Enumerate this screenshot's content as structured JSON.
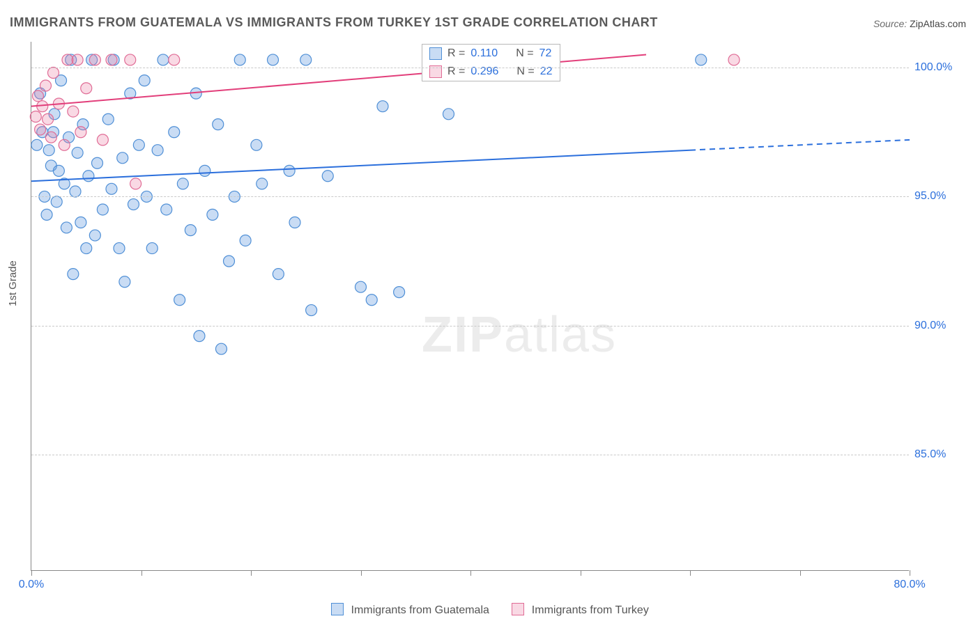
{
  "title": "IMMIGRANTS FROM GUATEMALA VS IMMIGRANTS FROM TURKEY 1ST GRADE CORRELATION CHART",
  "source_label": "Source:",
  "source_value": "ZipAtlas.com",
  "ylabel": "1st Grade",
  "watermark_a": "ZIP",
  "watermark_b": "atlas",
  "chart": {
    "type": "scatter",
    "x_domain": [
      0,
      80
    ],
    "y_domain": [
      80.5,
      101
    ],
    "y_gridlines": [
      85,
      90,
      95,
      100
    ],
    "y_tick_labels": [
      "85.0%",
      "90.0%",
      "95.0%",
      "100.0%"
    ],
    "x_ticks_pct": [
      0,
      10,
      20,
      30,
      40,
      50,
      60,
      70,
      80
    ],
    "x_min_label": "0.0%",
    "x_max_label": "80.0%",
    "grid_color": "#c9c9c9",
    "axis_color": "#888888",
    "background": "#ffffff",
    "tick_label_color": "#2b6fdc",
    "series": [
      {
        "id": "guatemala",
        "label": "Immigrants from Guatemala",
        "marker_fill": "rgba(99,155,224,0.35)",
        "marker_stroke": "#4f8fd6",
        "marker_radius": 8,
        "line_color": "#2b6fdc",
        "line_width": 2,
        "trend": {
          "x1": 0,
          "y1": 95.6,
          "x2": 60,
          "y2": 96.8,
          "dash_x2": 80,
          "dash_y2": 97.2
        },
        "R": "0.110",
        "N": "72",
        "points": [
          [
            0.5,
            97.0
          ],
          [
            0.8,
            99.0
          ],
          [
            1.0,
            97.5
          ],
          [
            1.2,
            95.0
          ],
          [
            1.4,
            94.3
          ],
          [
            1.6,
            96.8
          ],
          [
            1.8,
            96.2
          ],
          [
            2.0,
            97.5
          ],
          [
            2.1,
            98.2
          ],
          [
            2.3,
            94.8
          ],
          [
            2.5,
            96.0
          ],
          [
            2.7,
            99.5
          ],
          [
            3.0,
            95.5
          ],
          [
            3.2,
            93.8
          ],
          [
            3.4,
            97.3
          ],
          [
            3.6,
            100.3
          ],
          [
            3.8,
            92.0
          ],
          [
            4.0,
            95.2
          ],
          [
            4.2,
            96.7
          ],
          [
            4.5,
            94.0
          ],
          [
            4.7,
            97.8
          ],
          [
            5.0,
            93.0
          ],
          [
            5.2,
            95.8
          ],
          [
            5.5,
            100.3
          ],
          [
            5.8,
            93.5
          ],
          [
            6.0,
            96.3
          ],
          [
            6.5,
            94.5
          ],
          [
            7.0,
            98.0
          ],
          [
            7.3,
            95.3
          ],
          [
            7.5,
            100.3
          ],
          [
            8.0,
            93.0
          ],
          [
            8.3,
            96.5
          ],
          [
            8.5,
            91.7
          ],
          [
            9.0,
            99.0
          ],
          [
            9.3,
            94.7
          ],
          [
            9.8,
            97.0
          ],
          [
            10.3,
            99.5
          ],
          [
            10.5,
            95.0
          ],
          [
            11.0,
            93.0
          ],
          [
            11.5,
            96.8
          ],
          [
            12.0,
            100.3
          ],
          [
            12.3,
            94.5
          ],
          [
            13.0,
            97.5
          ],
          [
            13.5,
            91.0
          ],
          [
            13.8,
            95.5
          ],
          [
            14.5,
            93.7
          ],
          [
            15.0,
            99.0
          ],
          [
            15.3,
            89.6
          ],
          [
            15.8,
            96.0
          ],
          [
            16.5,
            94.3
          ],
          [
            17.0,
            97.8
          ],
          [
            17.3,
            89.1
          ],
          [
            18.0,
            92.5
          ],
          [
            18.5,
            95.0
          ],
          [
            19.0,
            100.3
          ],
          [
            19.5,
            93.3
          ],
          [
            20.5,
            97.0
          ],
          [
            21.0,
            95.5
          ],
          [
            22.0,
            100.3
          ],
          [
            22.5,
            92.0
          ],
          [
            23.5,
            96.0
          ],
          [
            24.0,
            94.0
          ],
          [
            25.0,
            100.3
          ],
          [
            25.5,
            90.6
          ],
          [
            27.0,
            95.8
          ],
          [
            30.0,
            91.5
          ],
          [
            31.0,
            91.0
          ],
          [
            32.0,
            98.5
          ],
          [
            33.5,
            91.3
          ],
          [
            38.0,
            98.2
          ],
          [
            40.0,
            100.3
          ],
          [
            61.0,
            100.3
          ]
        ]
      },
      {
        "id": "turkey",
        "label": "Immigrants from Turkey",
        "marker_fill": "rgba(235,130,165,0.30)",
        "marker_stroke": "#e06b95",
        "marker_radius": 8,
        "line_color": "#e23e7a",
        "line_width": 2,
        "trend": {
          "x1": 0,
          "y1": 98.5,
          "x2": 56,
          "y2": 100.5,
          "dash_x2": null,
          "dash_y2": null
        },
        "R": "0.296",
        "N": "22",
        "points": [
          [
            0.4,
            98.1
          ],
          [
            0.6,
            98.9
          ],
          [
            0.8,
            97.6
          ],
          [
            1.0,
            98.5
          ],
          [
            1.3,
            99.3
          ],
          [
            1.5,
            98.0
          ],
          [
            1.8,
            97.3
          ],
          [
            2.0,
            99.8
          ],
          [
            2.5,
            98.6
          ],
          [
            3.0,
            97.0
          ],
          [
            3.3,
            100.3
          ],
          [
            3.8,
            98.3
          ],
          [
            4.2,
            100.3
          ],
          [
            4.5,
            97.5
          ],
          [
            5.0,
            99.2
          ],
          [
            5.8,
            100.3
          ],
          [
            6.5,
            97.2
          ],
          [
            7.3,
            100.3
          ],
          [
            9.5,
            95.5
          ],
          [
            9.0,
            100.3
          ],
          [
            13.0,
            100.3
          ],
          [
            64.0,
            100.3
          ]
        ]
      }
    ]
  },
  "stats_box": {
    "rows": [
      {
        "series": "guatemala",
        "R_label": "R =",
        "R": "0.110",
        "N_label": "N =",
        "N": "72"
      },
      {
        "series": "turkey",
        "R_label": "R =",
        "R": "0.296",
        "N_label": "N =",
        "N": "22"
      }
    ]
  },
  "legend": {
    "items": [
      {
        "series": "guatemala",
        "label": "Immigrants from Guatemala"
      },
      {
        "series": "turkey",
        "label": "Immigrants from Turkey"
      }
    ]
  }
}
